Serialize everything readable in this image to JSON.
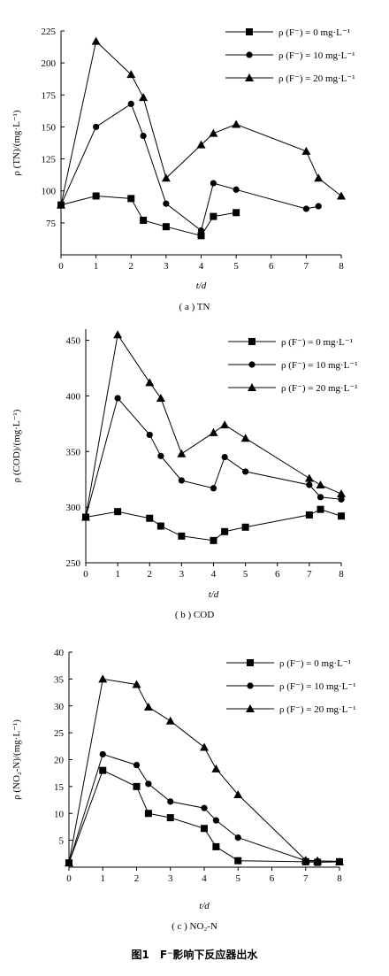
{
  "figure_caption": "图1　F⁻影响下反应器出水",
  "chart_data": [
    {
      "type": "line",
      "panel_caption": "( a ) TN",
      "ylabel": "ρ (TN)/(mg·L⁻¹)",
      "xlabel": "t/d",
      "xlim": [
        0,
        8
      ],
      "ylim": [
        50,
        225
      ],
      "yticks": [
        "225",
        "200",
        "175",
        "150",
        "125",
        "100",
        "75"
      ],
      "xticks": [
        "0",
        "1",
        "2",
        "3",
        "4",
        "5",
        "6",
        "7",
        "8"
      ],
      "legend_position": "top-right",
      "series": [
        {
          "name": "ρ (F⁻) = 0 mg·L⁻¹",
          "marker": "square",
          "x": [
            0,
            1,
            2,
            2.35,
            3,
            4,
            4.35,
            5
          ],
          "y": [
            89,
            96,
            94,
            77,
            72,
            65,
            80,
            83
          ]
        },
        {
          "name": "ρ (F⁻) = 10 mg·L⁻¹",
          "marker": "circle",
          "x": [
            0,
            1,
            2,
            2.35,
            3,
            4,
            4.35,
            5,
            7,
            7.35
          ],
          "y": [
            89,
            150,
            168,
            143,
            90,
            69,
            106,
            101,
            86,
            88
          ]
        },
        {
          "name": "ρ (F⁻) = 20 mg·L⁻¹",
          "marker": "triangle",
          "x": [
            0,
            1,
            2,
            2.35,
            3,
            4,
            4.35,
            5,
            7,
            7.35,
            8
          ],
          "y": [
            89,
            217,
            191,
            173,
            110,
            136,
            145,
            152,
            131,
            110,
            96
          ]
        }
      ]
    },
    {
      "type": "line",
      "panel_caption": "( b ) COD",
      "ylabel": "ρ (COD)/(mg·L⁻¹)",
      "xlabel": "t/d",
      "xlim": [
        0,
        8
      ],
      "ylim": [
        250,
        460
      ],
      "yticks": [
        "450",
        "400",
        "350",
        "300",
        "250"
      ],
      "xticks": [
        "0",
        "1",
        "2",
        "3",
        "4",
        "5",
        "6",
        "7",
        "8"
      ],
      "legend_position": "top-right",
      "series": [
        {
          "name": "ρ (F⁻) = 0 mg·L⁻¹",
          "marker": "square",
          "x": [
            0,
            1,
            2,
            2.35,
            3,
            4,
            4.35,
            5,
            7,
            7.35,
            8
          ],
          "y": [
            291,
            296,
            290,
            283,
            274,
            270,
            278,
            282,
            293,
            298,
            292
          ]
        },
        {
          "name": "ρ (F⁻) = 10 mg·L⁻¹",
          "marker": "circle",
          "x": [
            0,
            1,
            2,
            2.35,
            3,
            4,
            4.35,
            5,
            7,
            7.35,
            8
          ],
          "y": [
            291,
            398,
            365,
            346,
            324,
            317,
            345,
            332,
            320,
            309,
            307
          ]
        },
        {
          "name": "ρ (F⁻) = 20 mg·L⁻¹",
          "marker": "triangle",
          "x": [
            0,
            1,
            2,
            2.35,
            3,
            4,
            4.35,
            5,
            7,
            7.35,
            8
          ],
          "y": [
            291,
            455,
            412,
            398,
            348,
            367,
            374,
            362,
            326,
            320,
            312
          ]
        }
      ]
    },
    {
      "type": "line",
      "panel_caption": "( c ) NO₂-N",
      "ylabel": "ρ (NO₂-N)/(mg·L⁻¹)",
      "xlabel": "t/d",
      "xlim": [
        0,
        8
      ],
      "ylim": [
        0,
        40
      ],
      "yticks": [
        "40",
        "35",
        "30",
        "25",
        "20",
        "15",
        "10",
        "5"
      ],
      "xticks": [
        "0",
        "1",
        "2",
        "3",
        "4",
        "5",
        "6",
        "7",
        "8"
      ],
      "legend_position": "top-right",
      "series": [
        {
          "name": "ρ (F⁻) = 0 mg·L⁻¹",
          "marker": "square",
          "x": [
            0,
            1,
            2,
            2.35,
            3,
            4,
            4.35,
            5,
            7,
            7.35,
            8
          ],
          "y": [
            0.8,
            18,
            15,
            10,
            9.2,
            7.2,
            3.8,
            1.2,
            1.0,
            0.9,
            1.0
          ]
        },
        {
          "name": "ρ (F⁻) = 10 mg·L⁻¹",
          "marker": "circle",
          "x": [
            0,
            1,
            2,
            2.35,
            3,
            4,
            4.35,
            5,
            7,
            7.35,
            8
          ],
          "y": [
            0.8,
            21,
            19,
            15.5,
            12.2,
            11,
            8.7,
            5.5,
            1.2,
            1.1,
            1.1
          ]
        },
        {
          "name": "ρ (F⁻) = 20 mg·L⁻¹",
          "marker": "triangle",
          "x": [
            0,
            1,
            2,
            2.35,
            3,
            4,
            4.35,
            5,
            7,
            7.35,
            8
          ],
          "y": [
            0.8,
            35,
            34,
            29.8,
            27.2,
            22.3,
            18.3,
            13.5,
            1.3,
            1.2,
            1.0
          ]
        }
      ]
    }
  ]
}
